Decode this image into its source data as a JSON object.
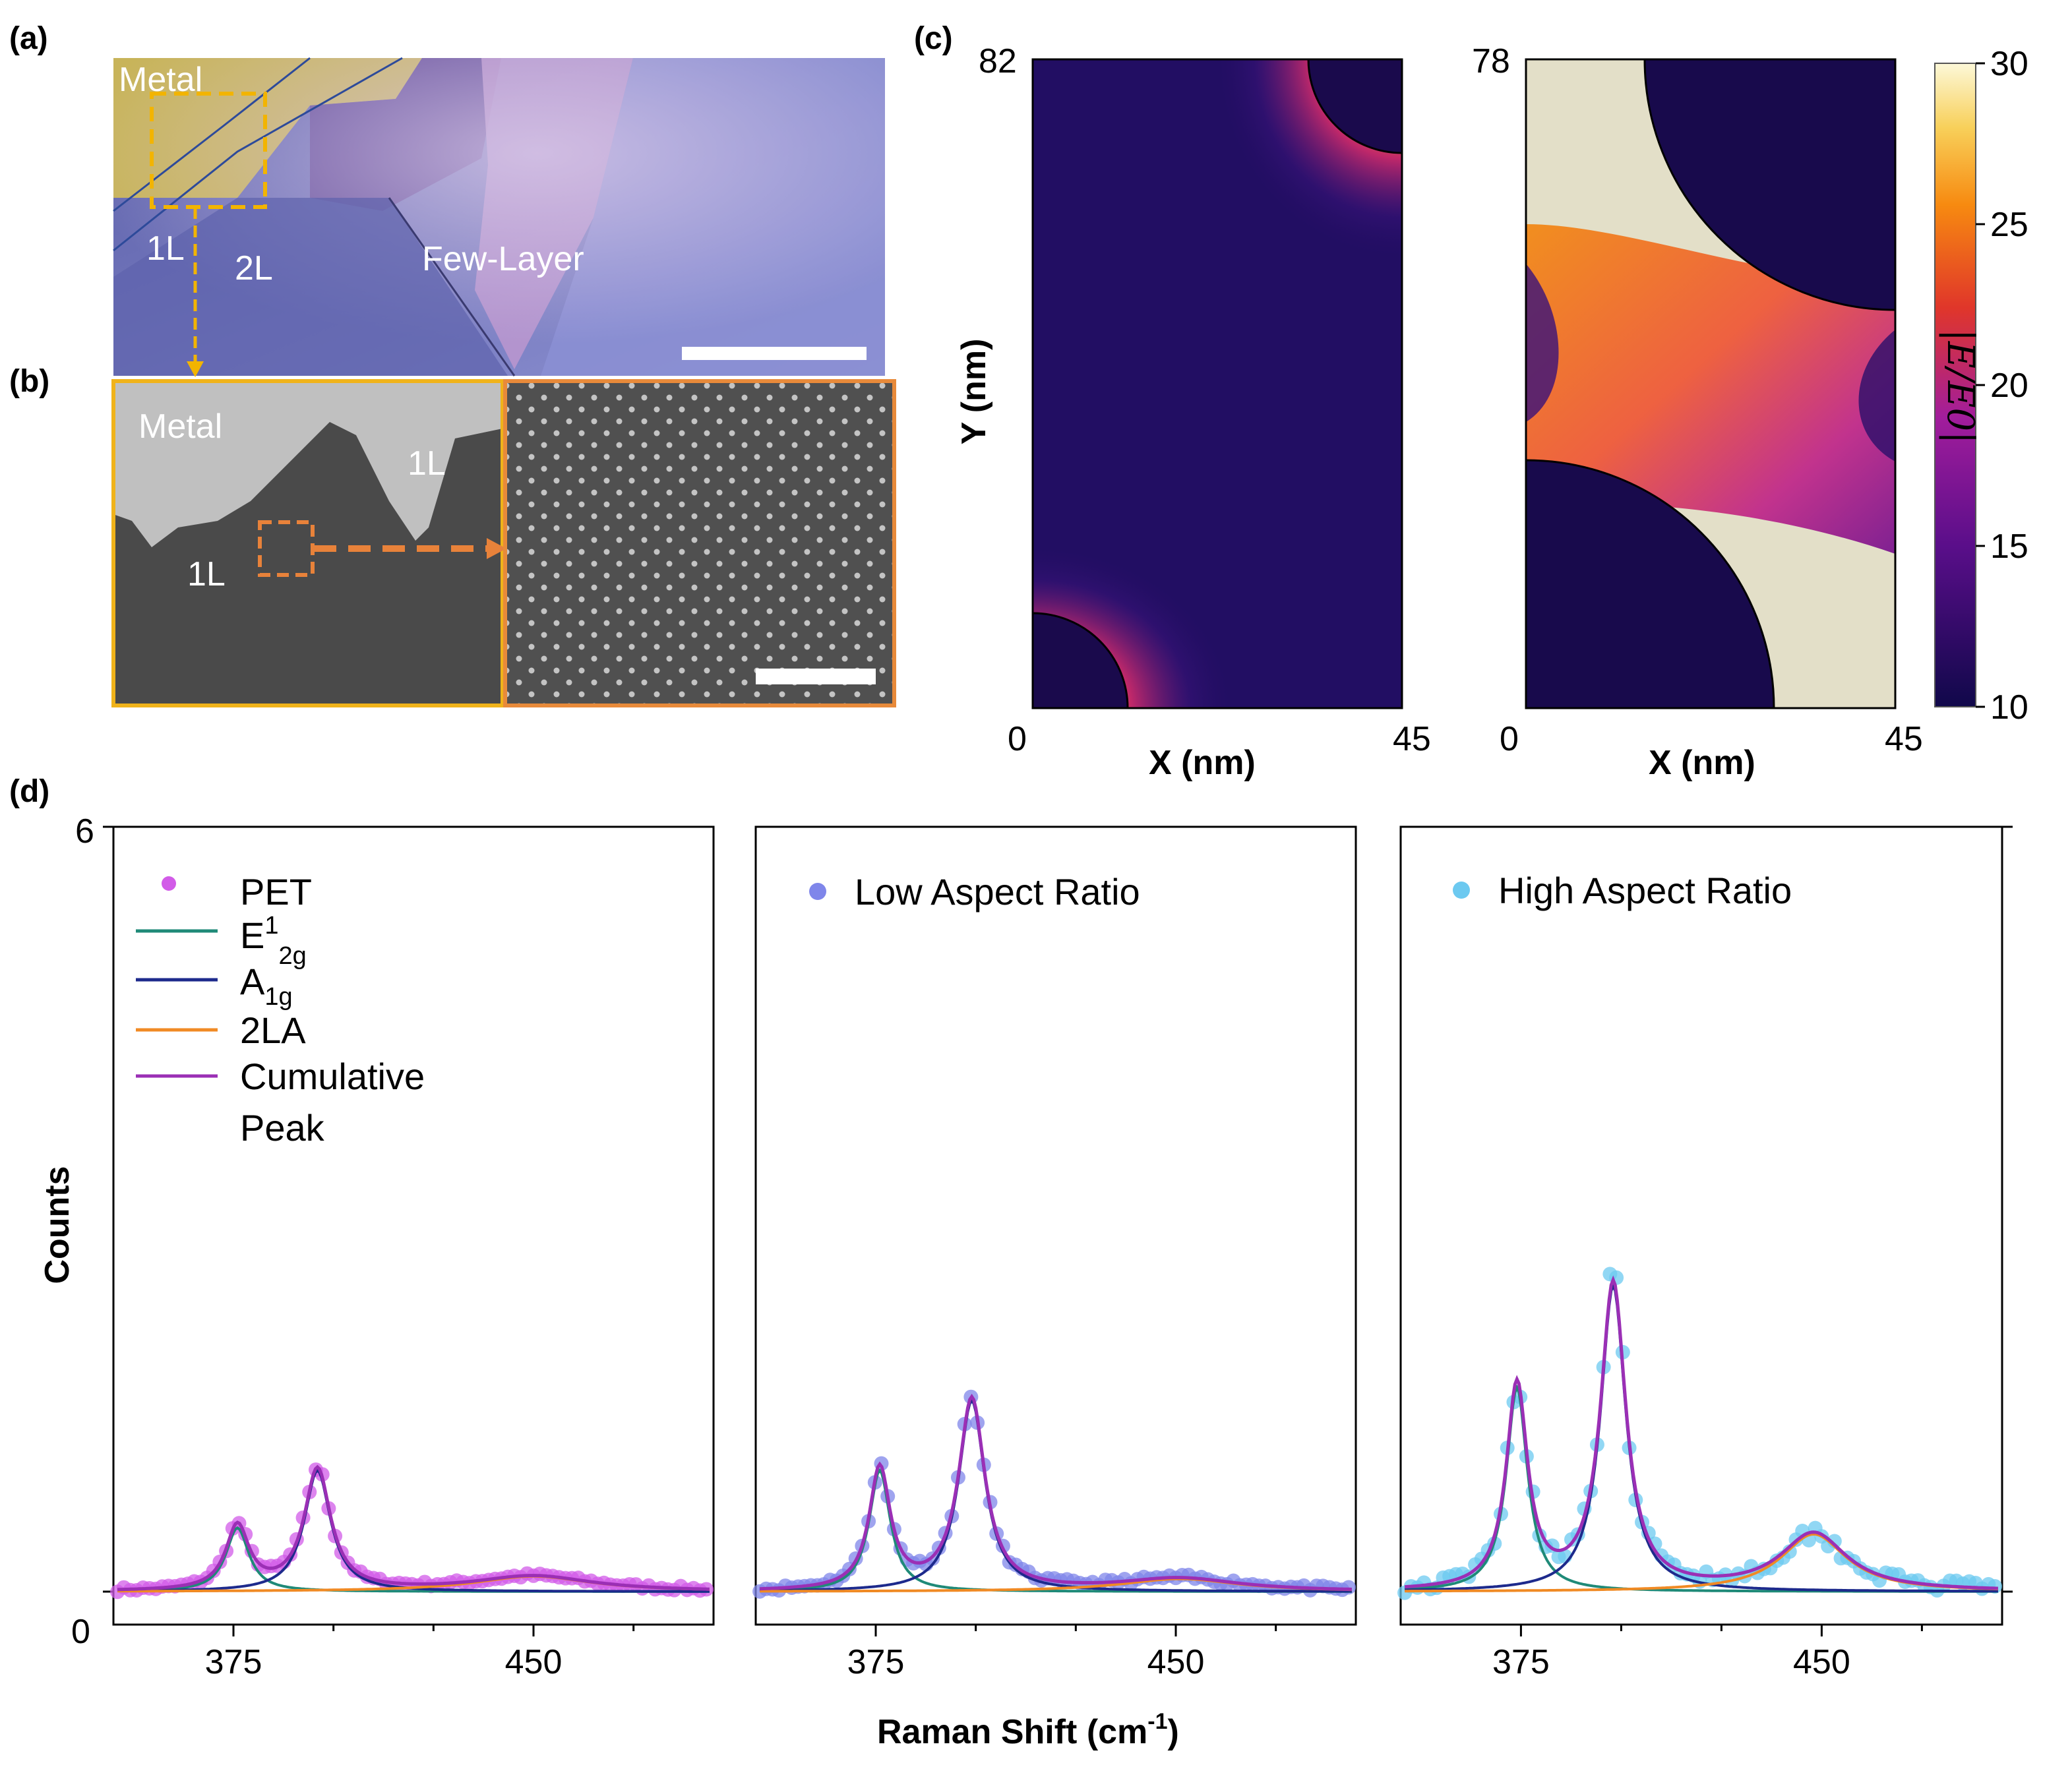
{
  "panels": {
    "a": {
      "label": "(a)",
      "annotations": {
        "metal": "Metal",
        "oneL": "1L",
        "twoL": "2L",
        "fewLayer": "Few-Layer"
      },
      "colors": {
        "metal": "#c8b45a",
        "flake2L": "#6a6cb8",
        "flake1L": "#6f7ab0",
        "fewLayer": "#8a8ad0",
        "scalebar": "#ffffff",
        "box": "#f2b400"
      }
    },
    "b": {
      "label": "(b)",
      "annotations": {
        "metal": "Metal",
        "oneL_right": "1L",
        "oneL_left": "1L"
      },
      "colors": {
        "leftBorder": "#f0b31a",
        "rightBorder": "#e88a3a",
        "arrow": "#e8823a",
        "metal": "#c0c0c0",
        "substrate": "#4a4a4a"
      }
    },
    "c": {
      "label": "(c)",
      "left": {
        "ymax": "82",
        "origin": "0",
        "xmax": "45",
        "ylabel": "Y (nm)",
        "xlabel": "X (nm)"
      },
      "right": {
        "ymax": "78",
        "origin": "0",
        "xmax": "45",
        "xlabel": "X (nm)"
      },
      "colorbar": {
        "ticks": [
          "30",
          "25",
          "20",
          "15",
          "10"
        ],
        "label": "|E/E0|",
        "min": 10,
        "max": 30
      }
    },
    "d": {
      "label": "(d)",
      "ylabel": "Counts",
      "xlabel_main": "Raman Shift (cm",
      "xlabel_sup": "-1",
      "xlabel_end": ")",
      "ytick_top": "6",
      "ytick_bottom": "0",
      "xticks": [
        "375",
        "450"
      ],
      "legend": {
        "pet": "PET",
        "e2g_main": "E",
        "e2g_sup": "1",
        "e2g_sub": "2g",
        "a1g_main": "A",
        "a1g_sub": "1g",
        "la": "2LA",
        "cumulative": "Cumulative",
        "peak": "Peak",
        "low": "Low Aspect Ratio",
        "high": "High Aspect Ratio"
      }
    }
  },
  "colors": {
    "pet": "#d25be8",
    "low": "#7f86ea",
    "high": "#6cc9f0",
    "e2g": "#1f8a78",
    "a1g": "#1d2a8c",
    "la": "#f08a24",
    "cumulative": "#9b2fb5"
  },
  "chart_data": [
    {
      "type": "scatter",
      "subplot": "PET",
      "x_range": [
        345,
        495
      ],
      "ylim": [
        0,
        6
      ],
      "x_ticks": [
        375,
        450
      ],
      "series": [
        {
          "name": "PET",
          "kind": "points"
        },
        {
          "name": "E12g",
          "kind": "fit",
          "center": 376,
          "amplitude": 0.5,
          "width": 3.5
        },
        {
          "name": "A1g",
          "kind": "fit",
          "center": 396,
          "amplitude": 0.95,
          "width": 4.0
        },
        {
          "name": "2LA",
          "kind": "fit",
          "center": 450,
          "amplitude": 0.12,
          "width": 18
        },
        {
          "name": "Cumulative Peak",
          "kind": "fit"
        }
      ]
    },
    {
      "type": "scatter",
      "subplot": "Low Aspect Ratio",
      "x_range": [
        345,
        495
      ],
      "ylim": [
        0,
        6
      ],
      "x_ticks": [
        375,
        450
      ],
      "series": [
        {
          "name": "Low Aspect Ratio",
          "kind": "points"
        },
        {
          "name": "E12g",
          "kind": "fit",
          "center": 376,
          "amplitude": 0.95,
          "width": 3.2
        },
        {
          "name": "A1g",
          "kind": "fit",
          "center": 399,
          "amplitude": 1.5,
          "width": 4.0
        },
        {
          "name": "2LA",
          "kind": "fit",
          "center": 451,
          "amplitude": 0.1,
          "width": 18
        },
        {
          "name": "Cumulative Peak",
          "kind": "fit"
        }
      ]
    },
    {
      "type": "scatter",
      "subplot": "High Aspect Ratio",
      "x_range": [
        345,
        495
      ],
      "ylim": [
        0,
        6
      ],
      "x_ticks": [
        375,
        450
      ],
      "series": [
        {
          "name": "High Aspect Ratio",
          "kind": "points"
        },
        {
          "name": "E12g",
          "kind": "fit",
          "center": 374,
          "amplitude": 1.6,
          "width": 3.2
        },
        {
          "name": "A1g",
          "kind": "fit",
          "center": 398,
          "amplitude": 2.4,
          "width": 3.8
        },
        {
          "name": "2LA",
          "kind": "fit",
          "center": 448,
          "amplitude": 0.45,
          "width": 10
        },
        {
          "name": "Cumulative Peak",
          "kind": "fit"
        }
      ]
    }
  ]
}
